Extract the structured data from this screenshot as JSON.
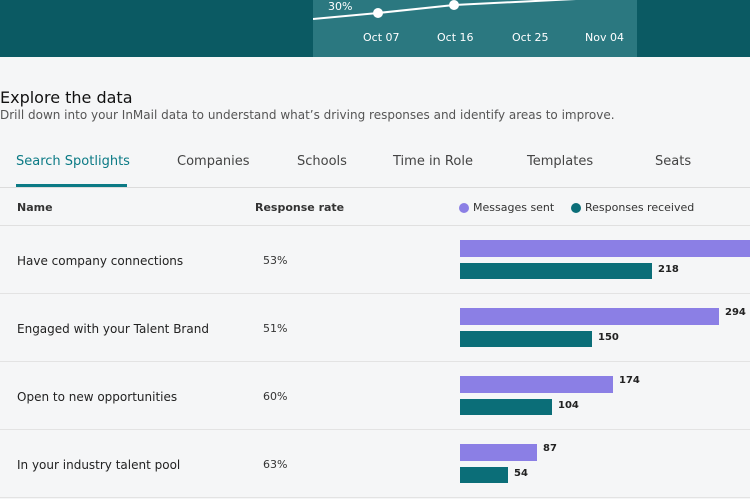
{
  "header": {
    "mini_chart_label": "30%",
    "dates": [
      "Oct 07",
      "Oct 16",
      "Oct 25",
      "Nov 04"
    ]
  },
  "section": {
    "title": "Explore the data",
    "subtitle": "Drill down into your InMail data to understand what’s driving responses and identify areas to improve."
  },
  "tabs": [
    {
      "label": "Search Spotlights",
      "active": true
    },
    {
      "label": "Companies",
      "active": false
    },
    {
      "label": "Schools",
      "active": false
    },
    {
      "label": "Time in Role",
      "active": false
    },
    {
      "label": "Templates",
      "active": false
    },
    {
      "label": "Seats",
      "active": false
    }
  ],
  "table": {
    "col_name": "Name",
    "col_rate": "Response rate",
    "legend_sent": "Messages sent",
    "legend_resp": "Responses received",
    "colors": {
      "sent": "#8b7fe5",
      "responses": "#0b6e78"
    },
    "rows": [
      {
        "name": "Have company connections",
        "rate": "53%",
        "sent": null,
        "sent_label": "",
        "responses": 218,
        "responses_label": "218"
      },
      {
        "name": "Engaged with your Talent Brand",
        "rate": "51%",
        "sent": 294,
        "sent_label": "294",
        "responses": 150,
        "responses_label": "150"
      },
      {
        "name": "Open to new opportunities",
        "rate": "60%",
        "sent": 174,
        "sent_label": "174",
        "responses": 104,
        "responses_label": "104"
      },
      {
        "name": "In your industry talent pool",
        "rate": "63%",
        "sent": 87,
        "sent_label": "87",
        "responses": 54,
        "responses_label": "54"
      }
    ]
  }
}
